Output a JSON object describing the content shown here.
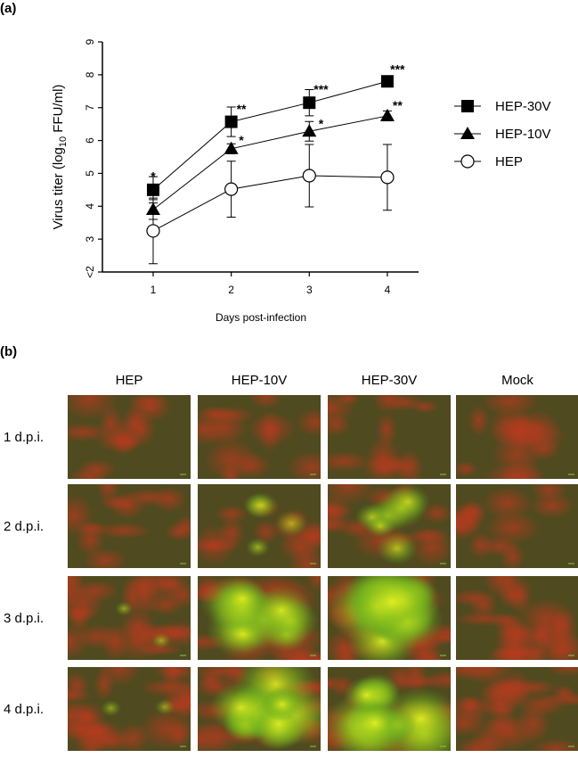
{
  "panel_a_label": "(a)",
  "chart_data": {
    "type": "line",
    "x_label": "Days post-infection",
    "y_label": "Virus titer (log",
    "y_label_sub": "10",
    "y_label_end": " FFU/ml)",
    "x": [
      1,
      2,
      3,
      4
    ],
    "xlim": [
      0.35,
      4.4
    ],
    "xticks": [
      1,
      2,
      3,
      4
    ],
    "ylim": [
      2,
      9
    ],
    "yticks": [
      {
        "value": 2,
        "label": "<2"
      },
      3,
      4,
      5,
      6,
      7,
      8,
      9
    ],
    "legend": "right",
    "series": [
      {
        "name": "HEP-30V",
        "marker": "square",
        "color": "#000000",
        "values": [
          4.5,
          6.57,
          7.15,
          7.8
        ],
        "errors": [
          0.4,
          0.45,
          0.4,
          0.05
        ]
      },
      {
        "name": "HEP-10V",
        "marker": "triangle",
        "color": "#000000",
        "values": [
          3.9,
          5.75,
          6.28,
          6.75
        ],
        "errors": [
          0.3,
          0.15,
          0.3,
          0.15
        ]
      },
      {
        "name": "HEP",
        "marker": "open-circle",
        "color": "#000000",
        "values": [
          3.25,
          4.52,
          4.93,
          4.88
        ],
        "errors": [
          1.0,
          0.85,
          0.95,
          1.0
        ]
      }
    ],
    "annotations": [
      {
        "text": "*",
        "x": 1,
        "y": 5.0
      },
      {
        "text": "**",
        "x": 2.13,
        "y": 7.05
      },
      {
        "text": "***",
        "x": 3.15,
        "y": 7.65
      },
      {
        "text": "***",
        "x": 4.13,
        "y": 8.25
      },
      {
        "text": "*",
        "x": 2.13,
        "y": 6.1
      },
      {
        "text": "*",
        "x": 3.15,
        "y": 6.6
      },
      {
        "text": "**",
        "x": 4.13,
        "y": 7.15
      }
    ]
  },
  "panel_b": {
    "label": "(b)",
    "columns": [
      "HEP",
      "HEP-10V",
      "HEP-30V",
      "Mock"
    ],
    "rows": [
      "1 d.p.i.",
      "2 d.p.i.",
      "3 d.p.i.",
      "4 d.p.i."
    ]
  }
}
